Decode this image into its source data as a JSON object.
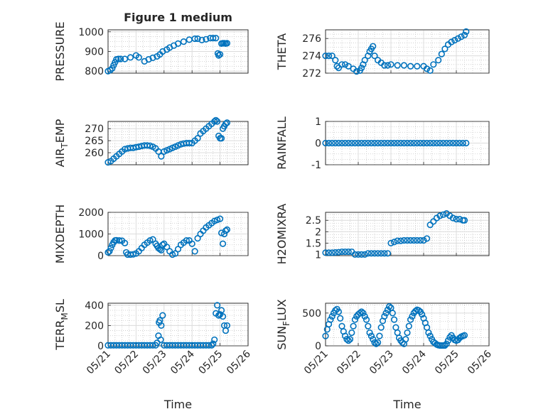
{
  "chart_data": {
    "title": "Figure 1 medium",
    "x_ticks": [
      "05/21",
      "05/22",
      "05/23",
      "05/24",
      "05/25",
      "05/26"
    ],
    "xlim": [
      "05/21",
      "05/26"
    ],
    "xlabel": "Time",
    "grid": "major and minor",
    "marker": "open circle",
    "color": "#0072BD",
    "subplots": [
      {
        "name": "pressure",
        "type": "scatter",
        "ylabel": "PRESSURE",
        "ylim": [
          790,
          1010
        ],
        "yticks": [
          800,
          900,
          1000
        ],
        "series": [
          {
            "x": [
              0.0,
              0.08,
              0.15,
              0.2,
              0.25,
              0.3,
              0.37,
              0.45,
              0.6,
              0.8,
              1.0,
              1.1,
              1.3,
              1.45,
              1.6,
              1.75,
              1.85,
              1.95,
              2.1,
              2.2,
              2.35,
              2.5,
              2.7,
              2.9,
              3.1,
              3.2,
              3.35,
              3.5,
              3.65,
              3.75,
              3.85,
              3.92,
              3.95,
              4.0,
              4.05,
              4.1,
              4.15,
              4.2,
              4.25
            ],
            "y": [
              800,
              805,
              815,
              830,
              845,
              860,
              862,
              862,
              862,
              870,
              880,
              870,
              850,
              860,
              868,
              875,
              885,
              900,
              910,
              920,
              930,
              940,
              950,
              960,
              965,
              965,
              958,
              962,
              968,
              968,
              968,
              890,
              880,
              885,
              940,
              942,
              942,
              940,
              942
            ]
          }
        ]
      },
      {
        "name": "theta",
        "type": "scatter",
        "ylabel": "THETA",
        "ylim": [
          272,
          277
        ],
        "yticks": [
          272,
          274,
          276
        ],
        "series": [
          {
            "x": [
              0.0,
              0.1,
              0.2,
              0.3,
              0.35,
              0.4,
              0.5,
              0.6,
              0.7,
              0.85,
              0.95,
              1.05,
              1.1,
              1.15,
              1.2,
              1.3,
              1.35,
              1.4,
              1.45,
              1.5,
              1.6,
              1.7,
              1.8,
              1.9,
              2.0,
              2.2,
              2.4,
              2.6,
              2.8,
              3.0,
              3.1,
              3.2,
              3.3,
              3.45,
              3.55,
              3.65,
              3.75,
              3.85,
              3.95,
              4.05,
              4.15,
              4.25,
              4.3
            ],
            "y": [
              274,
              274,
              274,
              273.5,
              272.8,
              272.6,
              273,
              273,
              272.8,
              272.5,
              272.2,
              272.3,
              272.6,
              273,
              273.5,
              274,
              274.5,
              274.8,
              275.1,
              274,
              273.5,
              273.2,
              272.9,
              272.9,
              273,
              272.9,
              272.9,
              272.8,
              272.8,
              272.8,
              272.5,
              272.3,
              273,
              273.5,
              274.2,
              274.8,
              275.3,
              275.6,
              275.8,
              276,
              276.2,
              276.4,
              276.8
            ]
          }
        ]
      },
      {
        "name": "air-temp",
        "type": "scatter",
        "ylabel": "AIR_TEMP",
        "ylabel_parts": [
          "AIR",
          "T",
          "EMP"
        ],
        "ylim": [
          255,
          273
        ],
        "yticks": [
          260,
          265,
          270
        ],
        "series": [
          {
            "x": [
              0.0,
              0.1,
              0.2,
              0.3,
              0.4,
              0.5,
              0.6,
              0.7,
              0.8,
              0.9,
              1.0,
              1.1,
              1.2,
              1.3,
              1.4,
              1.5,
              1.6,
              1.7,
              1.8,
              1.9,
              2.0,
              2.1,
              2.2,
              2.3,
              2.4,
              2.5,
              2.6,
              2.7,
              2.8,
              2.9,
              3.0,
              3.1,
              3.2,
              3.3,
              3.4,
              3.5,
              3.6,
              3.7,
              3.8,
              3.85,
              3.9,
              3.95,
              4.0,
              4.05,
              4.1,
              4.15,
              4.2,
              4.25
            ],
            "y": [
              256,
              256.5,
              257.5,
              258.5,
              259.5,
              260.5,
              261.5,
              261.8,
              262,
              262,
              262.3,
              262.5,
              262.8,
              263,
              263,
              262.9,
              262.5,
              261.8,
              260.5,
              258.5,
              260.5,
              261,
              261.5,
              262,
              262.5,
              263,
              263.5,
              263.8,
              264,
              264,
              264,
              265,
              266,
              268,
              269,
              270,
              271,
              272,
              273,
              273.5,
              273,
              267,
              266,
              266,
              270,
              271,
              272,
              272.5
            ]
          }
        ]
      },
      {
        "name": "rainfall",
        "type": "scatter",
        "ylabel": "RAINFALL",
        "ylim": [
          -1,
          1
        ],
        "yticks": [
          -1,
          0,
          1
        ],
        "series": [
          {
            "x": [
              0.0,
              0.1,
              0.2,
              0.3,
              0.4,
              0.5,
              0.6,
              0.7,
              0.8,
              0.9,
              1.0,
              1.1,
              1.2,
              1.3,
              1.4,
              1.5,
              1.6,
              1.7,
              1.8,
              1.9,
              2.0,
              2.1,
              2.2,
              2.3,
              2.4,
              2.5,
              2.6,
              2.7,
              2.8,
              2.9,
              3.0,
              3.1,
              3.2,
              3.3,
              3.4,
              3.5,
              3.6,
              3.7,
              3.8,
              3.9,
              4.0,
              4.1,
              4.2,
              4.3
            ],
            "y": [
              0,
              0,
              0,
              0,
              0,
              0,
              0,
              0,
              0,
              0,
              0,
              0,
              0,
              0,
              0,
              0,
              0,
              0,
              0,
              0,
              0,
              0,
              0,
              0,
              0,
              0,
              0,
              0,
              0,
              0,
              0,
              0,
              0,
              0,
              0,
              0,
              0,
              0,
              0,
              0,
              0,
              0,
              0,
              0
            ]
          }
        ]
      },
      {
        "name": "mixdepth",
        "type": "scatter",
        "ylabel": "MIXDEPTH",
        "ylim": [
          0,
          2000
        ],
        "yticks": [
          0,
          1000,
          2000
        ],
        "series": [
          {
            "x": [
              0.0,
              0.05,
              0.1,
              0.15,
              0.2,
              0.25,
              0.3,
              0.4,
              0.5,
              0.6,
              0.65,
              0.7,
              0.8,
              0.9,
              1.0,
              1.1,
              1.2,
              1.3,
              1.4,
              1.5,
              1.6,
              1.7,
              1.75,
              1.8,
              1.85,
              1.9,
              1.95,
              2.0,
              2.1,
              2.2,
              2.3,
              2.4,
              2.5,
              2.6,
              2.7,
              2.8,
              2.9,
              3.0,
              3.1,
              3.2,
              3.3,
              3.4,
              3.5,
              3.6,
              3.7,
              3.8,
              3.9,
              4.0,
              4.05,
              4.1,
              4.15,
              4.2,
              4.25
            ],
            "y": [
              150,
              200,
              350,
              500,
              620,
              700,
              710,
              700,
              690,
              580,
              150,
              50,
              50,
              60,
              100,
              200,
              350,
              500,
              600,
              700,
              750,
              550,
              450,
              350,
              300,
              250,
              500,
              550,
              400,
              200,
              50,
              100,
              300,
              500,
              600,
              700,
              700,
              550,
              200,
              800,
              1000,
              1150,
              1300,
              1400,
              1500,
              1600,
              1650,
              1700,
              1050,
              550,
              1000,
              1150,
              1200
            ]
          }
        ]
      },
      {
        "name": "h2omixra",
        "type": "scatter",
        "ylabel": "H2OMIXRA",
        "ylim": [
          0.95,
          2.85
        ],
        "yticks": [
          1,
          1.5,
          2,
          2.5
        ],
        "series": [
          {
            "x": [
              0.0,
              0.1,
              0.2,
              0.3,
              0.4,
              0.5,
              0.6,
              0.7,
              0.8,
              0.9,
              1.0,
              1.1,
              1.2,
              1.3,
              1.4,
              1.5,
              1.6,
              1.7,
              1.8,
              1.9,
              2.0,
              2.1,
              2.2,
              2.3,
              2.4,
              2.5,
              2.6,
              2.7,
              2.8,
              2.9,
              3.0,
              3.1,
              3.2,
              3.3,
              3.4,
              3.5,
              3.6,
              3.7,
              3.8,
              3.9,
              4.0,
              4.1,
              4.2,
              4.25
            ],
            "y": [
              1.08,
              1.08,
              1.08,
              1.09,
              1.1,
              1.12,
              1.12,
              1.12,
              1.12,
              1.0,
              1.0,
              1.0,
              1.0,
              1.05,
              1.05,
              1.05,
              1.05,
              1.05,
              1.05,
              1.05,
              1.5,
              1.55,
              1.6,
              1.6,
              1.62,
              1.62,
              1.62,
              1.62,
              1.62,
              1.62,
              1.62,
              1.7,
              2.3,
              2.45,
              2.6,
              2.7,
              2.75,
              2.8,
              2.7,
              2.6,
              2.55,
              2.55,
              2.5,
              2.5
            ]
          }
        ]
      },
      {
        "name": "terr-msl",
        "type": "scatter",
        "ylabel": "TERR_MSL",
        "ylabel_parts": [
          "TERR",
          "M",
          "SL"
        ],
        "ylim": [
          0,
          420
        ],
        "yticks": [
          0,
          200,
          400
        ],
        "series": [
          {
            "x": [
              0.0,
              0.1,
              0.2,
              0.3,
              0.4,
              0.5,
              0.6,
              0.7,
              0.8,
              0.9,
              1.0,
              1.1,
              1.2,
              1.3,
              1.4,
              1.5,
              1.6,
              1.7,
              1.75,
              1.8,
              1.82,
              1.85,
              1.88,
              1.9,
              1.95,
              2.0,
              2.1,
              2.2,
              2.3,
              2.4,
              2.5,
              2.6,
              2.7,
              2.8,
              2.9,
              3.0,
              3.1,
              3.2,
              3.3,
              3.4,
              3.5,
              3.6,
              3.7,
              3.75,
              3.8,
              3.85,
              3.9,
              3.95,
              4.0,
              4.05,
              4.1,
              4.15,
              4.2,
              4.25
            ],
            "y": [
              5,
              5,
              5,
              5,
              5,
              5,
              5,
              5,
              5,
              5,
              5,
              5,
              5,
              5,
              5,
              5,
              5,
              5,
              30,
              100,
              230,
              250,
              60,
              200,
              300,
              5,
              5,
              5,
              5,
              5,
              5,
              5,
              5,
              5,
              5,
              5,
              5,
              5,
              5,
              5,
              5,
              5,
              5,
              20,
              60,
              320,
              400,
              300,
              310,
              350,
              290,
              200,
              150,
              200
            ]
          }
        ]
      },
      {
        "name": "sun-flux",
        "type": "scatter",
        "ylabel": "SUN_FLUX",
        "ylabel_parts": [
          "SUN",
          "F",
          "LUX"
        ],
        "ylim": [
          0,
          650
        ],
        "yticks": [
          0,
          500
        ],
        "series": [
          {
            "x": [
              0.0,
              0.05,
              0.1,
              0.15,
              0.2,
              0.25,
              0.3,
              0.35,
              0.4,
              0.45,
              0.5,
              0.55,
              0.6,
              0.65,
              0.7,
              0.75,
              0.8,
              0.85,
              0.9,
              0.95,
              1.0,
              1.05,
              1.1,
              1.15,
              1.2,
              1.25,
              1.3,
              1.35,
              1.4,
              1.45,
              1.5,
              1.55,
              1.6,
              1.65,
              1.7,
              1.75,
              1.8,
              1.85,
              1.9,
              1.95,
              2.0,
              2.05,
              2.1,
              2.15,
              2.2,
              2.25,
              2.3,
              2.35,
              2.4,
              2.45,
              2.5,
              2.55,
              2.6,
              2.65,
              2.7,
              2.75,
              2.8,
              2.85,
              2.9,
              2.95,
              3.0,
              3.05,
              3.1,
              3.15,
              3.2,
              3.25,
              3.3,
              3.35,
              3.4,
              3.45,
              3.5,
              3.55,
              3.6,
              3.65,
              3.7,
              3.75,
              3.8,
              3.85,
              3.9,
              3.95,
              4.0,
              4.05,
              4.1,
              4.15,
              4.2,
              4.25
            ],
            "y": [
              150,
              250,
              330,
              400,
              450,
              500,
              540,
              560,
              520,
              420,
              300,
              220,
              150,
              100,
              80,
              100,
              200,
              300,
              400,
              450,
              480,
              500,
              520,
              500,
              450,
              400,
              300,
              200,
              150,
              100,
              50,
              30,
              50,
              150,
              280,
              380,
              450,
              500,
              550,
              600,
              580,
              500,
              400,
              280,
              200,
              120,
              80,
              50,
              30,
              100,
              200,
              300,
              400,
              450,
              500,
              530,
              550,
              540,
              520,
              480,
              420,
              350,
              280,
              200,
              150,
              100,
              60,
              40,
              20,
              10,
              5,
              5,
              5,
              5,
              30,
              80,
              130,
              160,
              120,
              90,
              80,
              90,
              120,
              140,
              150,
              160
            ]
          }
        ]
      }
    ]
  }
}
